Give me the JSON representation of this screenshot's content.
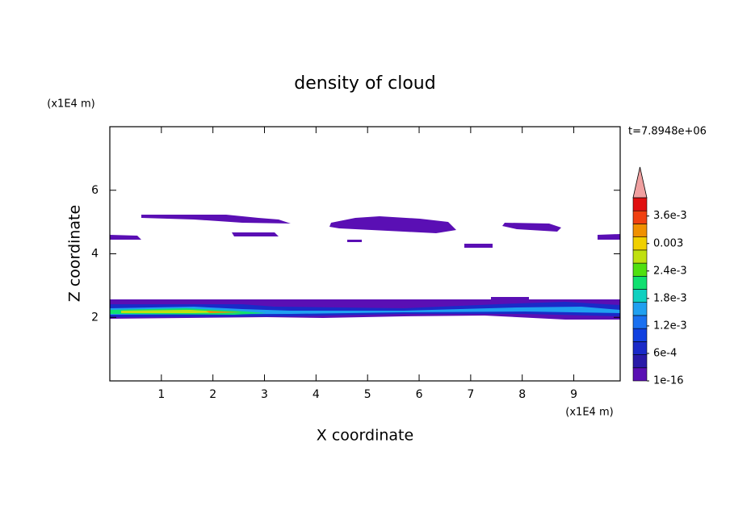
{
  "chart_data": {
    "type": "contour",
    "title": "density of cloud",
    "x_label": "X coordinate",
    "y_label": "Z coordinate",
    "x_unit": "(x1E4 m)",
    "y_unit": "(x1E4 m)",
    "time_label": "t=7.8948e+06",
    "xlim": [
      0,
      9.9
    ],
    "xticks": [
      1,
      2,
      3,
      4,
      5,
      6,
      7,
      8,
      9
    ],
    "ylim": [
      0,
      8
    ],
    "yticks": [
      2,
      4,
      6
    ],
    "colorbar": {
      "clim": [
        0,
        0.004
      ],
      "ticks": [
        1e-16,
        {
          "value": 0.0006,
          "label": "6e-4"
        },
        {
          "value": 0.0012,
          "label": "1.2e-3"
        },
        {
          "value": 0.0018,
          "label": "1.8e-3"
        },
        {
          "value": 0.0024,
          "label": "2.4e-3"
        },
        0.003,
        {
          "value": 0.0036,
          "label": "3.6e-3"
        }
      ],
      "colors": [
        "#5a0fb4",
        "#2a1aa8",
        "#1a2ac8",
        "#1040e0",
        "#1a70f0",
        "#20a0f0",
        "#10d0c0",
        "#10e070",
        "#50e010",
        "#c0e010",
        "#f0d000",
        "#f09000",
        "#f04010",
        "#e01010"
      ],
      "extend_color": "#f0a0a0"
    }
  }
}
